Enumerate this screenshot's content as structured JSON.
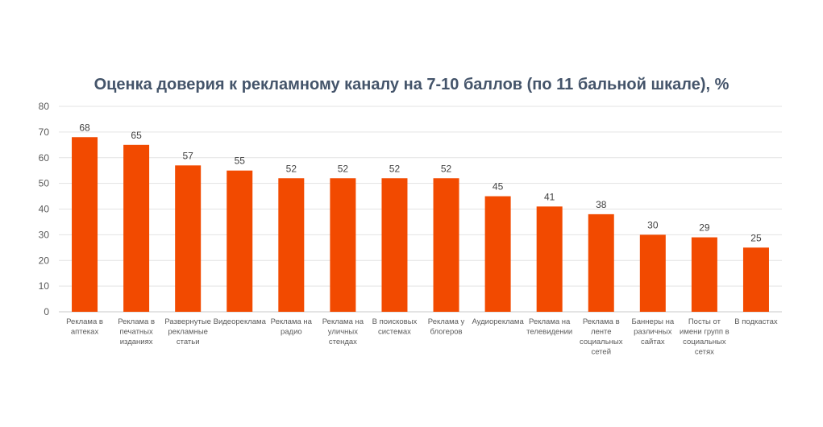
{
  "chart_data": {
    "type": "bar",
    "title": "Оценка доверия к рекламному каналу на 7-10 баллов (по 11 бальной шкале), %",
    "xlabel": "",
    "ylabel": "",
    "ylim": [
      0,
      80
    ],
    "yticks": [
      0,
      10,
      20,
      30,
      40,
      50,
      60,
      70,
      80
    ],
    "grid": true,
    "bar_color": "#f24a00",
    "categories": [
      [
        "Реклама в",
        "аптеках"
      ],
      [
        "Реклама в",
        "печатных",
        "изданиях"
      ],
      [
        "Развернутые",
        "рекламные",
        "статьи"
      ],
      [
        "Видеореклама"
      ],
      [
        "Реклама на",
        "радио"
      ],
      [
        "Реклама на",
        "уличных",
        "стендах"
      ],
      [
        "В поисковых",
        "системах"
      ],
      [
        "Реклама у",
        "блогеров"
      ],
      [
        "Аудиореклама"
      ],
      [
        "Реклама на",
        "телевидении"
      ],
      [
        "Реклама в",
        "ленте",
        "социальных",
        "сетей"
      ],
      [
        "Баннеры на",
        "различных",
        "сайтах"
      ],
      [
        "Посты от",
        "имени групп в",
        "социальных",
        "сетях"
      ],
      [
        "В подкастах"
      ]
    ],
    "values": [
      68,
      65,
      57,
      55,
      52,
      52,
      52,
      52,
      45,
      41,
      38,
      30,
      29,
      25
    ]
  }
}
